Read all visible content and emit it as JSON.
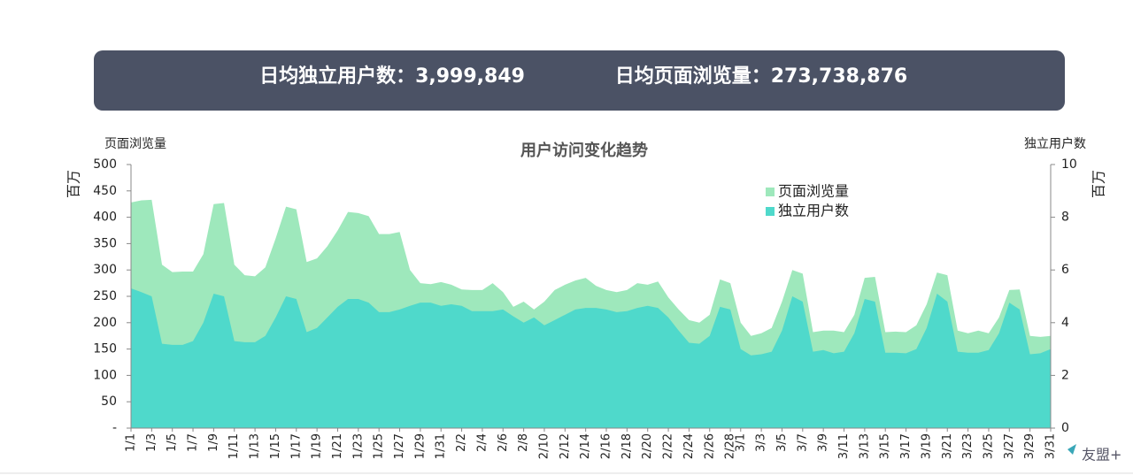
{
  "header": {
    "uv_text": "日均独立用户数：3,999,849",
    "pv_text": "日均页面浏览量：273,738,876"
  },
  "logo": "友盟+",
  "chart_data": {
    "type": "area",
    "title": "用户访问变化趋势",
    "y_label": "页面浏览量",
    "y_unit": "百万",
    "y2_label": "独立用户数",
    "y2_unit": "百万",
    "legend": "upper right",
    "categories": [
      "1/1",
      null,
      "1/3",
      null,
      "1/5",
      null,
      "1/7",
      null,
      "1/9",
      null,
      "1/11",
      null,
      "1/13",
      null,
      "1/15",
      null,
      "1/17",
      null,
      "1/19",
      null,
      "1/21",
      null,
      "1/23",
      null,
      "1/25",
      null,
      "1/27",
      null,
      "1/29",
      null,
      "1/31",
      null,
      "2/2",
      null,
      "2/4",
      null,
      "2/6",
      null,
      "2/8",
      null,
      "2/10",
      null,
      "2/12",
      null,
      "2/14",
      null,
      "2/16",
      null,
      "2/18",
      null,
      "2/20",
      null,
      "2/22",
      null,
      "2/24",
      null,
      "2/26",
      null,
      "2/28",
      "3/1",
      null,
      "3/3",
      null,
      "3/5",
      null,
      "3/7",
      null,
      "3/9",
      null,
      "3/11",
      null,
      "3/13",
      null,
      "3/15",
      null,
      "3/17",
      null,
      "3/19",
      null,
      "3/21",
      null,
      "3/23",
      null,
      "3/25",
      null,
      "3/27",
      null,
      "3/29",
      null,
      "3/31"
    ],
    "series": [
      {
        "name": "页面浏览量",
        "color": "#9ee8bc",
        "values": [
          428,
          432,
          433,
          310,
          296,
          297,
          297,
          330,
          425,
          427,
          310,
          290,
          288,
          305,
          360,
          420,
          415,
          315,
          322,
          345,
          375,
          410,
          408,
          402,
          368,
          368,
          372,
          300,
          275,
          273,
          277,
          272,
          263,
          262,
          262,
          275,
          258,
          230,
          240,
          225,
          240,
          262,
          272,
          280,
          285,
          270,
          262,
          258,
          262,
          275,
          272,
          278,
          248,
          225,
          205,
          200,
          215,
          282,
          275,
          200,
          175,
          180,
          190,
          240,
          300,
          293,
          182,
          185,
          185,
          182,
          215,
          285,
          287,
          182,
          183,
          182,
          195,
          235,
          295,
          290,
          185,
          180,
          185,
          180,
          210,
          262,
          263,
          175,
          173,
          175
        ]
      },
      {
        "name": "独立用户数",
        "color": "#4fd9cb",
        "axis": "y2",
        "values": [
          5.3,
          5.16,
          5.0,
          3.2,
          3.16,
          3.16,
          3.3,
          4.0,
          5.1,
          5.0,
          3.3,
          3.26,
          3.26,
          3.5,
          4.2,
          5.0,
          4.9,
          3.64,
          3.8,
          4.2,
          4.6,
          4.9,
          4.9,
          4.76,
          4.4,
          4.4,
          4.5,
          4.64,
          4.76,
          4.76,
          4.64,
          4.7,
          4.64,
          4.44,
          4.44,
          4.44,
          4.5,
          4.24,
          4.0,
          4.2,
          3.9,
          4.1,
          4.3,
          4.5,
          4.56,
          4.56,
          4.5,
          4.4,
          4.44,
          4.56,
          4.64,
          4.56,
          4.2,
          3.7,
          3.24,
          3.2,
          3.5,
          4.6,
          4.5,
          3.0,
          2.76,
          2.8,
          2.9,
          3.7,
          5.0,
          4.8,
          2.9,
          2.96,
          2.84,
          2.9,
          3.6,
          4.9,
          4.8,
          2.86,
          2.86,
          2.84,
          3.0,
          3.8,
          5.1,
          4.8,
          2.9,
          2.86,
          2.86,
          2.96,
          3.6,
          4.76,
          4.5,
          2.8,
          2.84,
          3.0
        ]
      }
    ],
    "ylim": [
      0,
      500
    ],
    "yticks": [
      {
        "value": 0,
        "label": "-"
      },
      50,
      100,
      150,
      200,
      250,
      300,
      350,
      400,
      450,
      500
    ],
    "y2lim": [
      0,
      10
    ],
    "y2ticks": [
      0,
      2,
      4,
      6,
      8,
      10
    ]
  }
}
